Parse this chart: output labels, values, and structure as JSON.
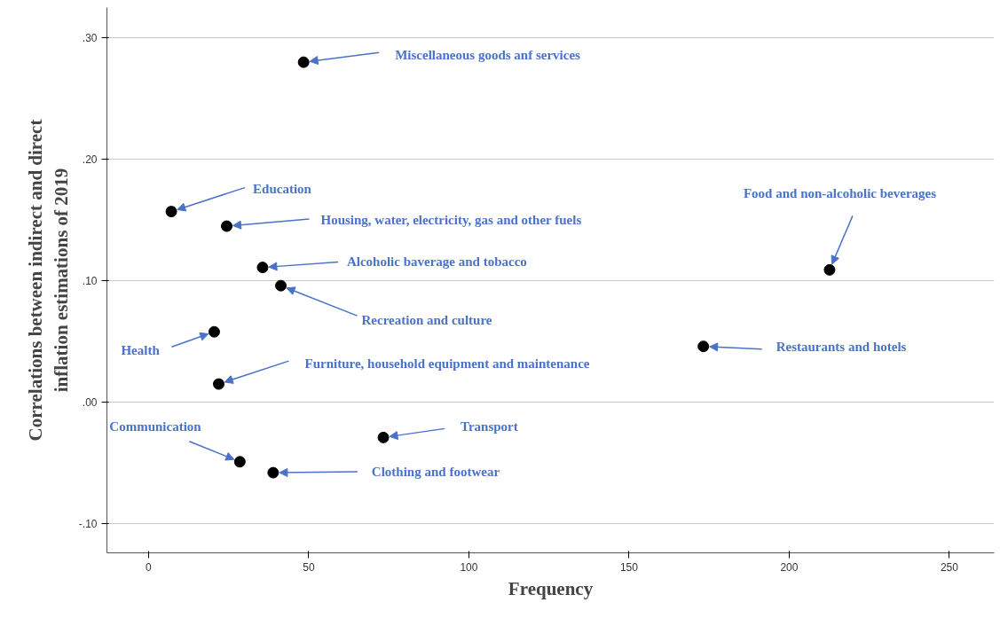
{
  "chart_data": {
    "type": "scatter",
    "xlabel": "Frequency",
    "ylabel": "Correlations between indirect and direct inflation estimations of 2019",
    "x": [
      48.4,
      7.1,
      24.4,
      35.6,
      41.3,
      20.5,
      21.9,
      28.5,
      38.9,
      73.3,
      212.6,
      173.2
    ],
    "values": [
      0.28,
      0.157,
      0.145,
      0.111,
      0.096,
      0.058,
      0.015,
      -0.049,
      -0.058,
      -0.029,
      0.109,
      0.046
    ],
    "color": "#000000",
    "marker": "circle",
    "xlim": [
      -13,
      264
    ],
    "ylim": [
      -0.124,
      0.325
    ],
    "xticks": [
      0,
      50,
      100,
      150,
      200,
      250
    ],
    "yticks": [
      {
        "value": -0.1,
        "label": "-.10"
      },
      {
        "value": 0.0,
        "label": ".00"
      },
      {
        "value": 0.1,
        "label": ".10"
      },
      {
        "value": 0.2,
        "label": ".20"
      },
      {
        "value": 0.3,
        "label": ".30"
      }
    ],
    "grid": "y",
    "annotations": [
      {
        "text": "Miscellaneous goods anf services",
        "x": 48.4,
        "y": 0.28
      },
      {
        "text": "Education",
        "x": 7.1,
        "y": 0.157
      },
      {
        "text": "Housing, water, electricity, gas and other fuels",
        "x": 24.4,
        "y": 0.145
      },
      {
        "text": "Alcoholic baverage and tobacco",
        "x": 35.6,
        "y": 0.111
      },
      {
        "text": "Recreation and culture",
        "x": 41.3,
        "y": 0.096
      },
      {
        "text": "Health",
        "x": 20.5,
        "y": 0.058
      },
      {
        "text": "Furniture, household equipment and maintenance",
        "x": 21.9,
        "y": 0.015
      },
      {
        "text": "Communication",
        "x": 28.5,
        "y": -0.049
      },
      {
        "text": "Clothing and footwear",
        "x": 38.9,
        "y": -0.058
      },
      {
        "text": "Transport",
        "x": 73.3,
        "y": -0.029
      },
      {
        "text": "Food and non-alcoholic beverages",
        "x": 212.6,
        "y": 0.109
      },
      {
        "text": "Restaurants and hotels",
        "x": 173.2,
        "y": 0.046
      }
    ]
  }
}
